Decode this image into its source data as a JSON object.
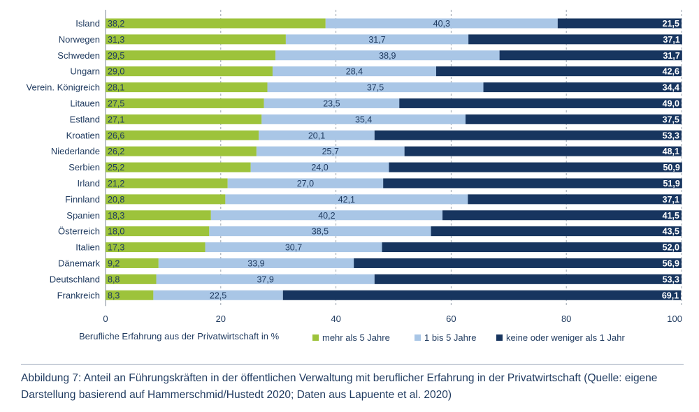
{
  "chart_data": {
    "type": "bar",
    "orientation": "horizontal",
    "stacked": true,
    "categories": [
      "Island",
      "Norwegen",
      "Schweden",
      "Ungarn",
      "Verein. Königreich",
      "Litauen",
      "Estland",
      "Kroatien",
      "Niederlande",
      "Serbien",
      "Irland",
      "Finnland",
      "Spanien",
      "Österreich",
      "Italien",
      "Dänemark",
      "Deutschland",
      "Frankreich"
    ],
    "series": [
      {
        "name": "mehr als 5 Jahre",
        "color": "#9dc33b",
        "values": [
          38.2,
          31.3,
          29.5,
          29.0,
          28.1,
          27.5,
          27.1,
          26.6,
          26.2,
          25.2,
          21.2,
          20.8,
          18.3,
          18.0,
          17.3,
          9.2,
          8.8,
          8.3
        ],
        "labels": [
          "38,2",
          "31,3",
          "29,5",
          "29,0",
          "28,1",
          "27,5",
          "27,1",
          "26,6",
          "26,2",
          "25,2",
          "21,2",
          "20,8",
          "18,3",
          "18,0",
          "17,3",
          "9,2",
          "8,8",
          "8,3"
        ]
      },
      {
        "name": "1 bis 5 Jahre",
        "color": "#a9c6e6",
        "values": [
          40.3,
          31.7,
          38.9,
          28.4,
          37.5,
          23.5,
          35.4,
          20.1,
          25.7,
          24.0,
          27.0,
          42.1,
          40.2,
          38.5,
          30.7,
          33.9,
          37.9,
          22.5
        ],
        "labels": [
          "40,3",
          "31,7",
          "38,9",
          "28,4",
          "37,5",
          "23,5",
          "35,4",
          "20,1",
          "25,7",
          "24,0",
          "27,0",
          "42,1",
          "40,2",
          "38,5",
          "30,7",
          "33,9",
          "37,9",
          "22,5"
        ]
      },
      {
        "name": "keine oder weniger als 1 Jahr",
        "color": "#17355f",
        "values": [
          21.5,
          37.1,
          31.7,
          42.6,
          34.4,
          49.0,
          37.5,
          53.3,
          48.1,
          50.9,
          51.9,
          37.1,
          41.5,
          43.5,
          52.0,
          56.9,
          53.3,
          69.1
        ],
        "labels": [
          "21,5",
          "37,1",
          "31,7",
          "42,6",
          "34,4",
          "49,0",
          "37,5",
          "53,3",
          "48,1",
          "50,9",
          "51,9",
          "37,1",
          "41,5",
          "43,5",
          "52,0",
          "56,9",
          "53,3",
          "69,1"
        ]
      }
    ],
    "xlim": [
      0,
      100
    ],
    "xticks": [
      0,
      20,
      40,
      60,
      80,
      100
    ],
    "xtick_labels": [
      "0",
      "20",
      "40",
      "60",
      "80",
      "100"
    ],
    "xlabel": "Berufliche Erfahrung aus der Privatwirtschaft in %",
    "grid": "vertical dashed",
    "legend_position": "bottom"
  },
  "caption": "Abbildung 7: Anteil an Führungskräften in der öffentlichen Verwaltung mit beruflicher Erfahrung in der Privatwirtschaft (Quelle: eigene Darstellung basierend auf Hammerschmid/Hustedt 2020; Daten aus Lapuente et al. 2020)"
}
